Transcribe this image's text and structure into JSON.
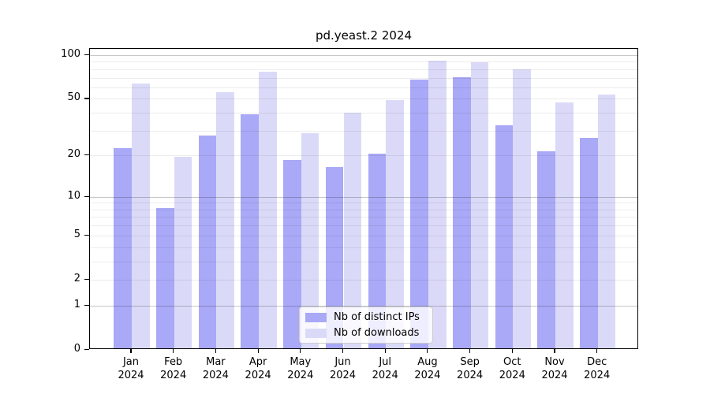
{
  "chart_data": {
    "type": "bar",
    "title": "pd.yeast.2 2024",
    "x_year_line": "2024",
    "categories": [
      "Jan",
      "Feb",
      "Mar",
      "Apr",
      "May",
      "Jun",
      "Jul",
      "Aug",
      "Sep",
      "Oct",
      "Nov",
      "Dec"
    ],
    "series": [
      {
        "name": "Nb of distinct IPs",
        "color": "#a9a9f7",
        "values": [
          22,
          8,
          27,
          38,
          18,
          16,
          20,
          66,
          69,
          32,
          21,
          26
        ]
      },
      {
        "name": "Nb of downloads",
        "color": "#dadaf8",
        "values": [
          62,
          19,
          54,
          75,
          28,
          39,
          48,
          89,
          87,
          78,
          46,
          52
        ]
      }
    ],
    "yscale": "log10(1+x)",
    "ylim": [
      0,
      110
    ],
    "yticks": [
      0,
      1,
      2,
      5,
      10,
      20,
      50,
      100
    ],
    "grid": {
      "major_values": [
        1,
        10,
        100
      ],
      "minor_values": [
        2,
        3,
        4,
        5,
        6,
        7,
        8,
        9,
        20,
        30,
        40,
        50,
        60,
        70,
        80,
        90
      ],
      "major_color": "rgba(0,0,0,0.22)",
      "minor_color": "rgba(0,0,0,0.075)"
    },
    "legend_position": "bottom-center",
    "axis_color": "#000000",
    "background_color": "#ffffff"
  }
}
